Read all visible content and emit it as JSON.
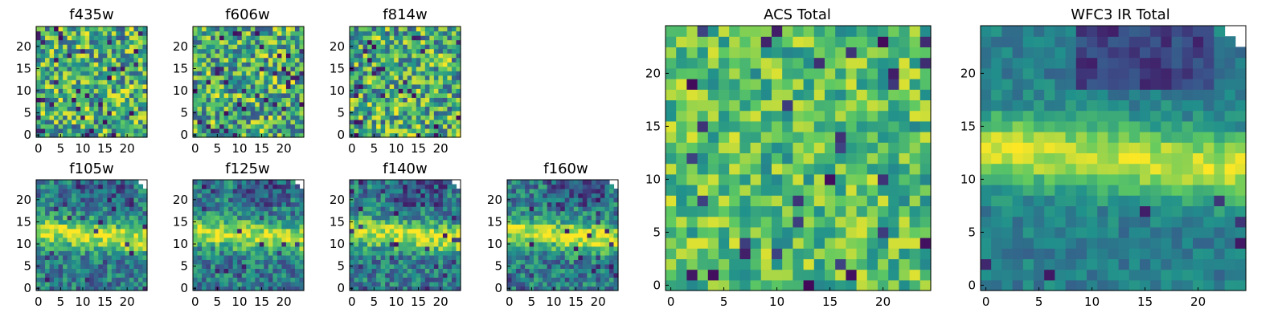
{
  "colormap": [
    "#440154",
    "#3b528b",
    "#21918c",
    "#5ec962",
    "#fde725"
  ],
  "chart_data": [
    {
      "type": "heatmap",
      "title": "f435w",
      "grid_size": 25,
      "xlim": [
        0,
        24
      ],
      "ylim": [
        0,
        24
      ],
      "xticks": [
        "0",
        "5",
        "10",
        "15",
        "20"
      ],
      "yticks": [
        "0",
        "5",
        "10",
        "15",
        "20"
      ],
      "pattern": "noise",
      "seed": 11,
      "missing_top_right": false
    },
    {
      "type": "heatmap",
      "title": "f606w",
      "grid_size": 25,
      "xlim": [
        0,
        24
      ],
      "ylim": [
        0,
        24
      ],
      "xticks": [
        "0",
        "5",
        "10",
        "15",
        "20"
      ],
      "yticks": [
        "0",
        "5",
        "10",
        "15",
        "20"
      ],
      "pattern": "noise",
      "seed": 23,
      "missing_top_right": false
    },
    {
      "type": "heatmap",
      "title": "f814w",
      "grid_size": 25,
      "xlim": [
        0,
        24
      ],
      "ylim": [
        0,
        24
      ],
      "xticks": [
        "0",
        "5",
        "10",
        "15",
        "20"
      ],
      "yticks": [
        "0",
        "5",
        "10",
        "15",
        "20"
      ],
      "pattern": "noise",
      "seed": 37,
      "missing_top_right": false
    },
    {
      "type": "heatmap",
      "title": "f105w",
      "grid_size": 25,
      "xlim": [
        0,
        24
      ],
      "ylim": [
        0,
        24
      ],
      "xticks": [
        "0",
        "5",
        "10",
        "15",
        "20"
      ],
      "yticks": [
        "0",
        "5",
        "10",
        "15",
        "20"
      ],
      "pattern": "band",
      "seed": 41,
      "missing_top_right": true
    },
    {
      "type": "heatmap",
      "title": "f125w",
      "grid_size": 25,
      "xlim": [
        0,
        24
      ],
      "ylim": [
        0,
        24
      ],
      "xticks": [
        "0",
        "5",
        "10",
        "15",
        "20"
      ],
      "yticks": [
        "0",
        "5",
        "10",
        "15",
        "20"
      ],
      "pattern": "band",
      "seed": 53,
      "missing_top_right": true
    },
    {
      "type": "heatmap",
      "title": "f140w",
      "grid_size": 25,
      "xlim": [
        0,
        24
      ],
      "ylim": [
        0,
        24
      ],
      "xticks": [
        "0",
        "5",
        "10",
        "15",
        "20"
      ],
      "yticks": [
        "0",
        "5",
        "10",
        "15",
        "20"
      ],
      "pattern": "band",
      "seed": 67,
      "missing_top_right": true
    },
    {
      "type": "heatmap",
      "title": "f160w",
      "grid_size": 25,
      "xlim": [
        0,
        24
      ],
      "ylim": [
        0,
        24
      ],
      "xticks": [
        "0",
        "5",
        "10",
        "15",
        "20"
      ],
      "yticks": [
        "0",
        "5",
        "10",
        "15",
        "20"
      ],
      "pattern": "band",
      "seed": 79,
      "missing_top_right": true
    },
    {
      "type": "heatmap",
      "title": "ACS Total",
      "grid_size": 25,
      "xlim": [
        0,
        24
      ],
      "ylim": [
        0,
        24
      ],
      "xticks": [
        "0",
        "5",
        "10",
        "15",
        "20"
      ],
      "yticks": [
        "0",
        "5",
        "10",
        "15",
        "20"
      ],
      "pattern": "noise_bright",
      "seed": 97,
      "missing_top_right": false
    },
    {
      "type": "heatmap",
      "title": "WFC3 IR Total",
      "grid_size": 25,
      "xlim": [
        0,
        24
      ],
      "ylim": [
        0,
        24
      ],
      "xticks": [
        "0",
        "5",
        "10",
        "15",
        "20"
      ],
      "yticks": [
        "0",
        "5",
        "10",
        "15",
        "20"
      ],
      "pattern": "band_smooth",
      "seed": 113,
      "missing_top_right": true
    }
  ]
}
